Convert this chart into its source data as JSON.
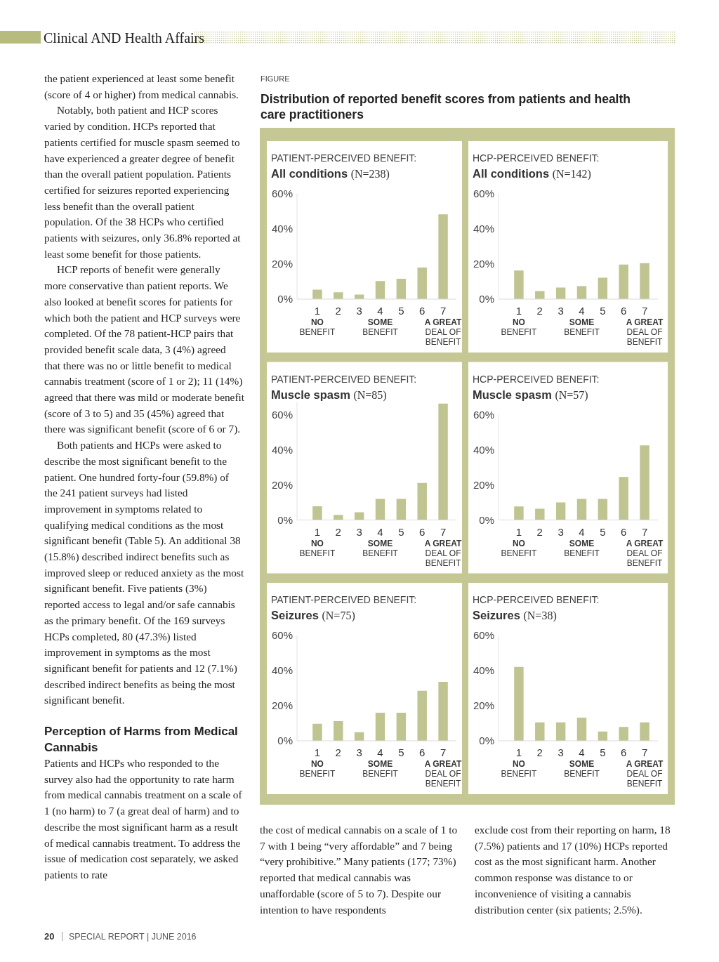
{
  "chart_data": [
    {
      "type": "bar",
      "title": "PATIENT-PERCEIVED BENEFIT:",
      "subtitle": "All conditions (N=238)",
      "categories": [
        "1\nNO\nBENEFIT",
        "2",
        "3",
        "4\nSOME\nBENEFIT",
        "5",
        "6",
        "7\nA GREAT\nDEAL OF\nBENEFIT"
      ],
      "values": [
        5.4,
        3.9,
        2.6,
        10.3,
        11.6,
        18,
        48.3
      ],
      "color": "#bfc491",
      "ylim": [
        0,
        60
      ],
      "yticks": [
        {
          "value": 0,
          "label": "0%"
        },
        {
          "value": 20,
          "label": "20%"
        },
        {
          "value": 40,
          "label": "40%"
        },
        {
          "value": 60,
          "label": "60%"
        }
      ],
      "annotations": [
        "Clinical AND Health Affairs",
        "FIGURE",
        "Distribution of reported benefit scores from patients and health care practitioners",
        "the patient experienced at least some benefit (score of 4 or higher) from medical cannabis.",
        "Notably, both patient and HCP scores varied by condition. HCPs reported that patients certified for muscle spasm seemed to have experienced a greater degree of benefit than the overall patient population. Patients certified for seizures reported experiencing less benefit than the overall patient population. Of the 38 HCPs who certified patients with seizures, only 36.8% reported at least some benefit for those patients.",
        "HCP reports of benefit were generally more conservative than patient reports. We also looked at benefit scores for patients for which both the patient and HCP surveys were completed. Of the 78 patient-HCP pairs that provided benefit scale data, 3 (4%) agreed that there was no or little benefit to medical cannabis treatment (score of 1 or 2); 11 (14%) agreed that there was mild or moderate benefit (score of 3 to 5) and 35 (45%) agreed that there was significant benefit (score of 6 or 7).",
        "Both patients and HCPs were asked to describe the most significant benefit to the patient. One hundred forty-four (59.8%) of the 241 patient surveys had listed improvement in symptoms related to qualifying medical conditions as the most significant benefit (Table 5). An additional 38 (15.8%) described indirect benefits such as improved sleep or reduced anxiety as the most significant benefit. Five patients (3%) reported access to legal and/or safe cannabis as the primary benefit. Of the 169 surveys HCPs completed, 80 (47.3%) listed improvement in symptoms as the most significant benefit for patients and 12 (7.1%) described indirect benefits as being the most significant benefit.",
        "Perception of Harms from Medical Cannabis",
        "Patients and HCPs who responded to the survey also had the opportunity to rate harm from medical cannabis treatment on a scale of 1 (no harm) to 7 (a great deal of harm) and to describe the most significant harm as a result of medical cannabis treatment. To address the issue of medication cost separately, we asked patients to rate",
        "the cost of medical cannabis on a scale of 1 to 7 with 1 being “very affordable” and 7 being “very prohibitive.” Many patients (177; 73%) reported that medical cannabis was unaffordable (score of 5 to 7). Despite our intention to have respondents",
        "exclude cost from their reporting on harm, 18 (7.5%) patients and 17 (10%) HCPs reported cost as the most significant harm. Another common response was distance to or inconvenience of visiting a cannabis distribution center (six patients; 2.5%).",
        "20",
        "SPECIAL REPORT | JUNE 2016"
      ]
    },
    {
      "type": "bar",
      "title": "HCP-PERCEIVED BENEFIT:",
      "subtitle": "All conditions (N=142)",
      "categories": [
        "1\nNO\nBENEFIT",
        "2",
        "3",
        "4\nSOME\nBENEFIT",
        "5",
        "6",
        "7\nA GREAT\nDEAL OF\nBENEFIT"
      ],
      "values": [
        16.3,
        4.6,
        6.6,
        7.4,
        12.2,
        19.7,
        20.5
      ],
      "color": "#bfc491",
      "ylim": [
        0,
        60
      ],
      "yticks": [
        {
          "value": 0,
          "label": "0%"
        },
        {
          "value": 20,
          "label": "20%"
        },
        {
          "value": 40,
          "label": "40%"
        },
        {
          "value": 60,
          "label": "60%"
        }
      ]
    },
    {
      "type": "bar",
      "title": "PATIENT-PERCEIVED BENEFIT:",
      "subtitle": "Muscle spasm (N=85)",
      "categories": [
        "1\nNO\nBENEFIT",
        "2",
        "3",
        "4\nSOME\nBENEFIT",
        "5",
        "6",
        "7\nA GREAT\nDEAL OF\nBENEFIT"
      ],
      "values": [
        7.8,
        2.9,
        4.4,
        12,
        12,
        21.1,
        66.3
      ],
      "color": "#bfc491",
      "ylim": [
        0,
        67
      ],
      "yticks": [
        {
          "value": 0,
          "label": "0%"
        },
        {
          "value": 20,
          "label": "20%"
        },
        {
          "value": 40,
          "label": "40%"
        },
        {
          "value": 60,
          "label": "60%"
        }
      ]
    },
    {
      "type": "bar",
      "title": "HCP-PERCEIVED BENEFIT:",
      "subtitle": "Muscle spasm (N=57)",
      "categories": [
        "1\nNO\nBENEFIT",
        "2",
        "3",
        "4\nSOME\nBENEFIT",
        "5",
        "6",
        "7\nA GREAT\nDEAL OF\nBENEFIT"
      ],
      "values": [
        7.7,
        6.4,
        10,
        12,
        12,
        24.5,
        42.5
      ],
      "color": "#bfc491",
      "ylim": [
        0,
        60
      ],
      "yticks": [
        {
          "value": 0,
          "label": "0%"
        },
        {
          "value": 20,
          "label": "20%"
        },
        {
          "value": 40,
          "label": "40%"
        },
        {
          "value": 60,
          "label": "60%"
        }
      ]
    },
    {
      "type": "bar",
      "title": "PATIENT-PERCEIVED BENEFIT:",
      "subtitle": "Seizures (N=75)",
      "categories": [
        "1\nNO\nBENEFIT",
        "2",
        "3",
        "4\nSOME\nBENEFIT",
        "5",
        "6",
        "7\nA GREAT\nDEAL OF\nBENEFIT"
      ],
      "values": [
        9.7,
        11.2,
        4.9,
        16,
        16,
        28.5,
        33.6
      ],
      "color": "#bfc491",
      "ylim": [
        0,
        60
      ],
      "yticks": [
        {
          "value": 0,
          "label": "0%"
        },
        {
          "value": 20,
          "label": "20%"
        },
        {
          "value": 40,
          "label": "40%"
        },
        {
          "value": 60,
          "label": "60%"
        }
      ]
    },
    {
      "type": "bar",
      "title": "HCP-PERCEIVED BENEFIT:",
      "subtitle": "Seizures (N=38)",
      "categories": [
        "1\nNO\nBENEFIT",
        "2",
        "3",
        "4\nSOME\nBENEFIT",
        "5",
        "6",
        "7\nA GREAT\nDEAL OF\nBENEFIT"
      ],
      "values": [
        42.1,
        10.5,
        10.5,
        13.2,
        5.3,
        7.9,
        10.5
      ],
      "color": "#bfc491",
      "ylim": [
        0,
        60
      ],
      "yticks": [
        {
          "value": 0,
          "label": "0%"
        },
        {
          "value": 20,
          "label": "20%"
        },
        {
          "value": 40,
          "label": "40%"
        },
        {
          "value": 60,
          "label": "60%"
        }
      ]
    }
  ]
}
